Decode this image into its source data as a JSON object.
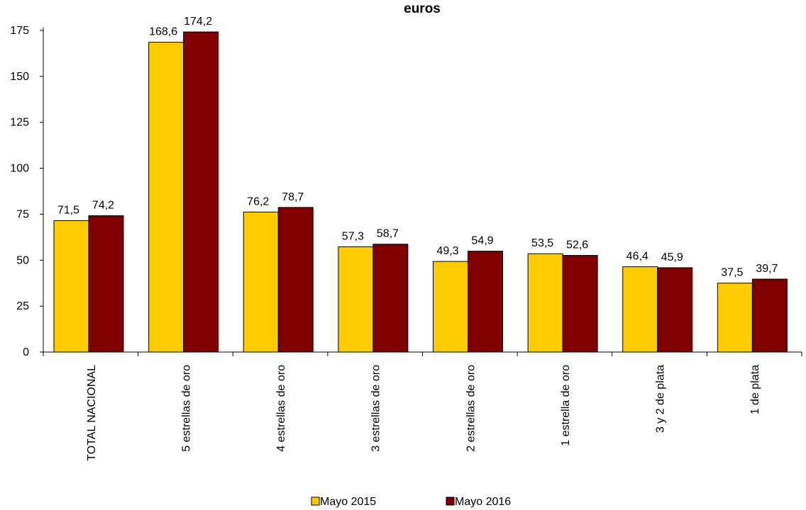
{
  "chart_data": {
    "type": "bar",
    "title": "euros",
    "categories": [
      "TOTAL NACIONAL",
      "5 estrellas de oro",
      "4 estrellas de oro",
      "3 estrellas de oro",
      "2 estrellas de oro",
      "1 estrella de oro",
      "3 y 2 de plata",
      "1 de plata"
    ],
    "series": [
      {
        "name": "Mayo 2015",
        "color": "#FFCC00",
        "values": [
          71.5,
          168.6,
          76.2,
          57.3,
          49.3,
          53.5,
          46.4,
          37.5
        ],
        "labels": [
          "71,5",
          "168,6",
          "76,2",
          "57,3",
          "49,3",
          "53,5",
          "46,4",
          "37,5"
        ]
      },
      {
        "name": "Mayo 2016",
        "color": "#800000",
        "values": [
          74.2,
          174.2,
          78.7,
          58.7,
          54.9,
          52.6,
          45.9,
          39.7
        ],
        "labels": [
          "74,2",
          "174,2",
          "78,7",
          "58,7",
          "54,9",
          "52,6",
          "45,9",
          "39,7"
        ]
      }
    ],
    "ylim": [
      0,
      175
    ],
    "yticks": [
      "0",
      "25",
      "50",
      "75",
      "100",
      "125",
      "150",
      "175"
    ],
    "grid": false,
    "legend": "bottom-center"
  }
}
